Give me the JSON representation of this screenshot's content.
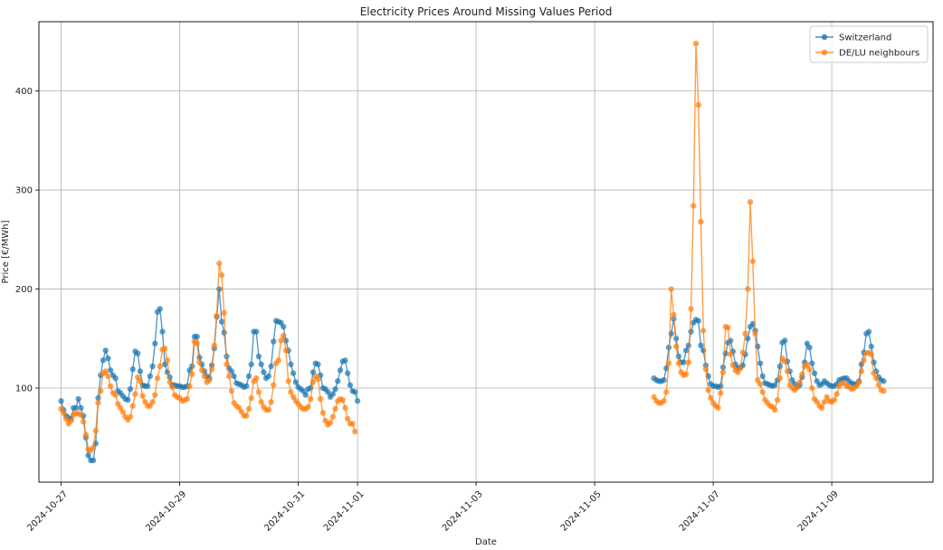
{
  "chart_data": {
    "type": "line",
    "title": "Electricity Prices Around Missing Values Period",
    "xlabel": "Date",
    "ylabel": "Price [€/MWh]",
    "x_ticks": [
      "2024-10-27",
      "2024-10-29",
      "2024-10-31",
      "2024-11-01",
      "2024-11-03",
      "2024-11-05",
      "2024-11-07",
      "2024-11-09"
    ],
    "y_ticks": [
      100,
      200,
      300,
      400
    ],
    "xlim": [
      "2024-10-26T15:00",
      "2024-11-10T17:00"
    ],
    "ylim": [
      5,
      470
    ],
    "grid": true,
    "legend_position": "top-right",
    "series": [
      {
        "name": "Switzerland",
        "color": "#1f77b4",
        "segments": [
          {
            "start": "2024-10-27T00:00",
            "values": [
              87,
              78,
              72,
              70,
              69,
              80,
              80,
              89,
              80,
              72,
              50,
              32,
              27,
              27,
              44,
              90,
              113,
              128,
              138,
              130,
              118,
              113,
              110,
              97,
              95,
              92,
              89,
              88,
              99,
              119,
              137,
              135,
              117,
              103,
              102,
              102,
              112,
              122,
              145,
              177,
              180,
              157,
              124,
              116,
              111,
              103,
              103,
              102,
              102,
              101,
              101,
              102,
              118,
              122,
              152,
              152,
              131,
              124,
              117,
              112,
              110,
              123,
              140,
              172,
              200,
              167,
              156,
              132,
              120,
              117,
              112,
              105,
              104,
              103,
              101,
              102,
              112,
              124,
              157,
              157,
              132,
              124,
              116,
              110,
              112,
              122,
              147,
              168,
              167,
              166,
              162,
              148,
              138,
              124,
              115,
              106,
              101,
              99,
              97,
              93,
              99,
              100,
              116,
              125,
              124,
              113,
              100,
              99,
              96,
              91,
              94,
              99,
              107,
              118,
              127,
              128,
              115,
              103,
              97,
              96,
              87
            ]
          },
          {
            "start": "2024-11-06T00:00",
            "values": [
              110,
              108,
              107,
              107,
              108,
              120,
              141,
              155,
              170,
              150,
              132,
              126,
              126,
              138,
              143,
              157,
              166,
              169,
              168,
              143,
              138,
              123,
              112,
              104,
              102,
              102,
              101,
              102,
              121,
              135,
              146,
              148,
              137,
              124,
              120,
              121,
              123,
              134,
              150,
              162,
              165,
              158,
              142,
              125,
              112,
              105,
              104,
              103,
              102,
              103,
              108,
              122,
              146,
              148,
              127,
              117,
              108,
              104,
              101,
              103,
              111,
              126,
              145,
              141,
              125,
              115,
              107,
              103,
              104,
              107,
              105,
              103,
              102,
              102,
              104,
              108,
              109,
              110,
              110,
              107,
              105,
              104,
              104,
              107,
              124,
              136,
              155,
              157,
              142,
              126,
              117,
              111,
              108,
              107
            ]
          }
        ]
      },
      {
        "name": "DE/LU neighbours",
        "color": "#ff7f0e",
        "segments": [
          {
            "start": "2024-10-27T00:00",
            "values": [
              79,
              75,
              69,
              64,
              67,
              73,
              75,
              74,
              73,
              66,
              53,
              38,
              37,
              40,
              57,
              85,
              97,
              115,
              117,
              112,
              102,
              95,
              93,
              84,
              80,
              76,
              71,
              68,
              71,
              82,
              94,
              111,
              107,
              92,
              86,
              82,
              82,
              86,
              93,
              110,
              122,
              139,
              140,
              128,
              106,
              101,
              93,
              91,
              90,
              87,
              88,
              89,
              102,
              114,
              147,
              145,
              126,
              118,
              112,
              106,
              108,
              119,
              143,
              173,
              226,
              214,
              176,
              124,
              112,
              97,
              85,
              82,
              80,
              76,
              72,
              72,
              79,
              90,
              107,
              110,
              96,
              86,
              81,
              78,
              78,
              86,
              103,
              125,
              128,
              148,
              153,
              138,
              107,
              96,
              91,
              87,
              84,
              81,
              79,
              79,
              81,
              89,
              106,
              112,
              109,
              89,
              75,
              67,
              63,
              65,
              71,
              79,
              87,
              89,
              88,
              80,
              69,
              64,
              64,
              56
            ]
          },
          {
            "start": "2024-11-06T00:00",
            "values": [
              91,
              87,
              85,
              85,
              87,
              96,
              125,
              200,
              174,
              142,
              125,
              116,
              113,
              114,
              126,
              180,
              284,
              448,
              386,
              268,
              158,
              119,
              98,
              90,
              85,
              82,
              80,
              95,
              116,
              162,
              161,
              134,
              123,
              118,
              116,
              120,
              136,
              155,
              200,
              288,
              228,
              155,
              108,
              104,
              96,
              88,
              85,
              82,
              81,
              78,
              88,
              110,
              130,
              127,
              117,
              103,
              100,
              98,
              101,
              106,
              114,
              122,
              124,
              119,
              100,
              89,
              86,
              82,
              80,
              86,
              91,
              87,
              86,
              88,
              94,
              102,
              105,
              105,
              102,
              101,
              99,
              100,
              102,
              106,
              117,
              128,
              135,
              136,
              134,
              115,
              110,
              103,
              98,
              97
            ]
          }
        ]
      }
    ]
  }
}
